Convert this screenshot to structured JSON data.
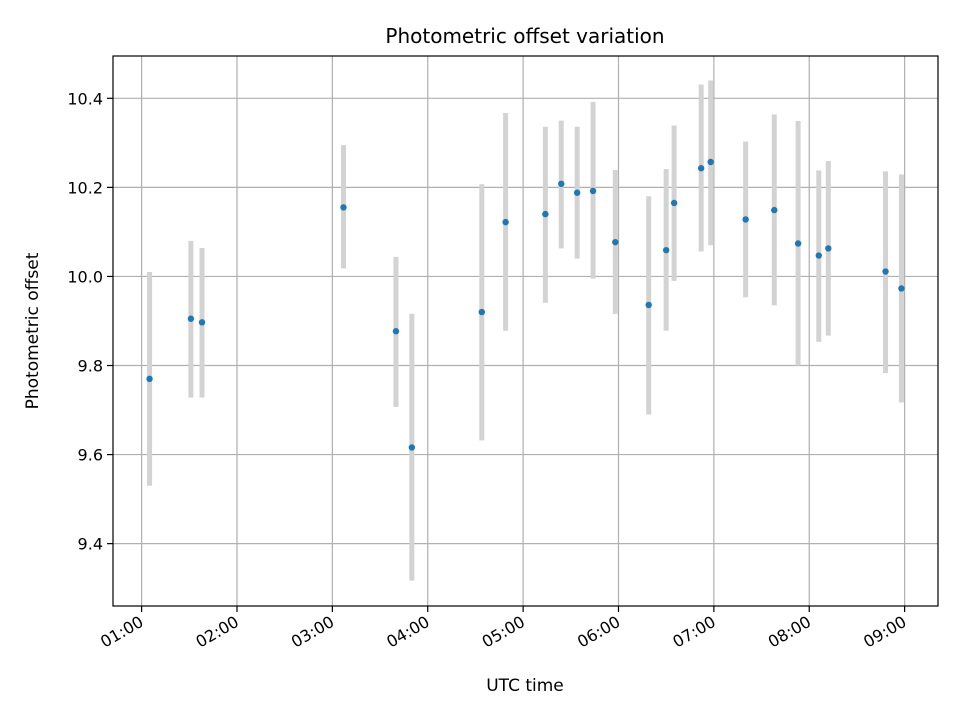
{
  "chart_data": {
    "type": "scatter",
    "title": "Photometric offset variation",
    "xlabel": "UTC time",
    "ylabel": "Photometric offset",
    "x_tick_labels": [
      "01:00",
      "02:00",
      "03:00",
      "04:00",
      "05:00",
      "06:00",
      "07:00",
      "08:00",
      "09:00"
    ],
    "y_tick_labels": [
      "9.4",
      "9.6",
      "9.8",
      "10.0",
      "10.2",
      "10.4"
    ],
    "y_ticks": [
      9.4,
      9.6,
      9.8,
      10.0,
      10.2,
      10.4
    ],
    "xlim": [
      "00:42",
      "09:21"
    ],
    "ylim": [
      9.26,
      10.495
    ],
    "grid": true,
    "colors": {
      "points": "#1f77b4",
      "errorbars": "#d3d3d3",
      "grid": "#b0b0b0"
    },
    "points": [
      {
        "time": "01:05",
        "y": 9.77,
        "yerr_low": 9.53,
        "yerr_high": 10.01
      },
      {
        "time": "01:31",
        "y": 9.905,
        "yerr_low": 9.728,
        "yerr_high": 10.08
      },
      {
        "time": "01:38",
        "y": 9.897,
        "yerr_low": 9.728,
        "yerr_high": 10.064
      },
      {
        "time": "03:07",
        "y": 10.155,
        "yerr_low": 10.018,
        "yerr_high": 10.295
      },
      {
        "time": "03:40",
        "y": 9.877,
        "yerr_low": 9.707,
        "yerr_high": 10.044
      },
      {
        "time": "03:50",
        "y": 9.616,
        "yerr_low": 9.317,
        "yerr_high": 9.916
      },
      {
        "time": "04:34",
        "y": 9.92,
        "yerr_low": 9.632,
        "yerr_high": 10.207
      },
      {
        "time": "04:49",
        "y": 10.122,
        "yerr_low": 9.878,
        "yerr_high": 10.367
      },
      {
        "time": "05:14",
        "y": 10.14,
        "yerr_low": 9.941,
        "yerr_high": 10.336
      },
      {
        "time": "05:24",
        "y": 10.208,
        "yerr_low": 10.063,
        "yerr_high": 10.35
      },
      {
        "time": "05:34",
        "y": 10.188,
        "yerr_low": 10.04,
        "yerr_high": 10.336
      },
      {
        "time": "05:44",
        "y": 10.192,
        "yerr_low": 9.995,
        "yerr_high": 10.392
      },
      {
        "time": "05:58",
        "y": 10.077,
        "yerr_low": 9.916,
        "yerr_high": 10.239
      },
      {
        "time": "06:19",
        "y": 9.936,
        "yerr_low": 9.69,
        "yerr_high": 10.18
      },
      {
        "time": "06:30",
        "y": 10.059,
        "yerr_low": 9.878,
        "yerr_high": 10.241
      },
      {
        "time": "06:35",
        "y": 10.165,
        "yerr_low": 9.99,
        "yerr_high": 10.339
      },
      {
        "time": "06:52",
        "y": 10.243,
        "yerr_low": 10.056,
        "yerr_high": 10.431
      },
      {
        "time": "06:58",
        "y": 10.257,
        "yerr_low": 10.07,
        "yerr_high": 10.44
      },
      {
        "time": "07:20",
        "y": 10.128,
        "yerr_low": 9.953,
        "yerr_high": 10.303
      },
      {
        "time": "07:38",
        "y": 10.149,
        "yerr_low": 9.935,
        "yerr_high": 10.364
      },
      {
        "time": "07:53",
        "y": 10.074,
        "yerr_low": 9.8,
        "yerr_high": 10.349
      },
      {
        "time": "08:06",
        "y": 10.047,
        "yerr_low": 9.853,
        "yerr_high": 10.238
      },
      {
        "time": "08:12",
        "y": 10.063,
        "yerr_low": 9.867,
        "yerr_high": 10.259
      },
      {
        "time": "08:48",
        "y": 10.011,
        "yerr_low": 9.783,
        "yerr_high": 10.236
      },
      {
        "time": "08:58",
        "y": 9.973,
        "yerr_low": 9.717,
        "yerr_high": 10.229
      }
    ]
  }
}
